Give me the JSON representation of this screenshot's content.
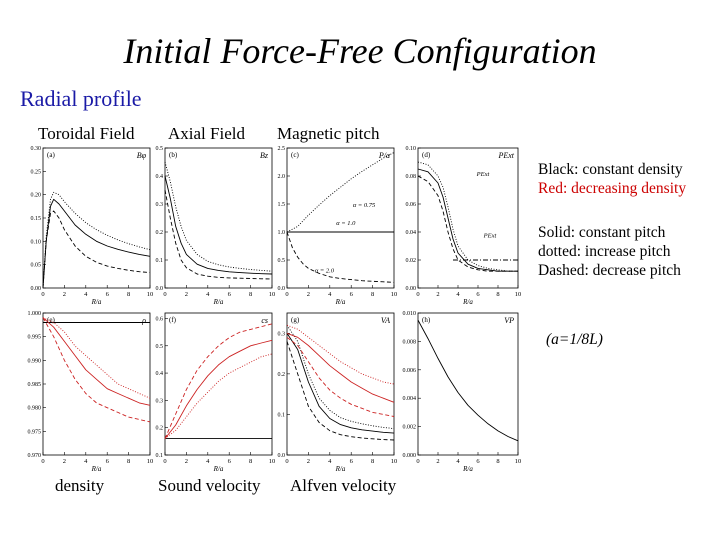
{
  "slide": {
    "title": "Initial Force-Free Configuration",
    "subtitle": "Radial profile",
    "top_labels": [
      "Toroidal Field",
      "Axial Field",
      "Magnetic pitch"
    ],
    "bottom_labels": [
      "density",
      "Sound velocity",
      "Alfven velocity"
    ],
    "legend_colors": [
      "Black: constant density",
      "Red: decreasing density"
    ],
    "legend_styles": [
      "Solid: constant pitch",
      "dotted: increase pitch",
      "Dashed: decrease pitch"
    ],
    "parameter_note": "(a=1/8L)",
    "colors": {
      "title": "#000000",
      "subtitle": "#1a1aa6",
      "red_text": "#cc0000",
      "red_curve": "#cc2222"
    }
  },
  "chart_data": [
    {
      "type": "line",
      "panel": "(a)",
      "title": "B_φ",
      "xlabel": "R/a",
      "xticks": [
        "0",
        "2",
        "4",
        "6",
        "8",
        "10"
      ],
      "yticks": [
        "0.00",
        "0.05",
        "0.10",
        "0.15",
        "0.20",
        "0.25",
        "0.30"
      ],
      "xlim": [
        0,
        10
      ],
      "ylim": [
        0,
        0.3
      ],
      "series": [
        {
          "style": "solid",
          "color": "black",
          "x": [
            0,
            0.3,
            0.7,
            1.0,
            1.5,
            2,
            3,
            4,
            5,
            6,
            7,
            8,
            9,
            10
          ],
          "y": [
            0,
            0.1,
            0.175,
            0.19,
            0.18,
            0.165,
            0.135,
            0.115,
            0.1,
            0.09,
            0.083,
            0.077,
            0.072,
            0.068
          ]
        },
        {
          "style": "dotted",
          "color": "black",
          "x": [
            0,
            0.3,
            0.7,
            1.0,
            1.5,
            2,
            3,
            4,
            5,
            6,
            7,
            8,
            9,
            10
          ],
          "y": [
            0,
            0.11,
            0.19,
            0.205,
            0.2,
            0.185,
            0.16,
            0.14,
            0.125,
            0.113,
            0.103,
            0.095,
            0.088,
            0.082
          ]
        },
        {
          "style": "dashed",
          "color": "black",
          "x": [
            0,
            0.3,
            0.7,
            1.0,
            1.5,
            2,
            3,
            4,
            5,
            6,
            7,
            8,
            9,
            10
          ],
          "y": [
            0,
            0.1,
            0.16,
            0.165,
            0.15,
            0.125,
            0.09,
            0.068,
            0.055,
            0.047,
            0.042,
            0.038,
            0.035,
            0.033
          ]
        }
      ]
    },
    {
      "type": "line",
      "panel": "(b)",
      "title": "B_z",
      "xlabel": "R/a",
      "xticks": [
        "0",
        "2",
        "4",
        "6",
        "8",
        "10"
      ],
      "yticks": [
        "0.0",
        "0.1",
        "0.2",
        "0.3",
        "0.4",
        "0.5"
      ],
      "xlim": [
        0,
        10
      ],
      "ylim": [
        0,
        0.5
      ],
      "series": [
        {
          "style": "solid",
          "color": "black",
          "x": [
            0,
            0.5,
            1,
            1.5,
            2,
            3,
            4,
            5,
            6,
            7,
            8,
            9,
            10
          ],
          "y": [
            0.4,
            0.32,
            0.22,
            0.16,
            0.12,
            0.085,
            0.07,
            0.063,
            0.058,
            0.055,
            0.053,
            0.051,
            0.05
          ]
        },
        {
          "style": "dotted",
          "color": "black",
          "x": [
            0,
            0.5,
            1,
            1.5,
            2,
            3,
            4,
            5,
            6,
            7,
            8,
            9,
            10
          ],
          "y": [
            0.45,
            0.38,
            0.29,
            0.22,
            0.17,
            0.12,
            0.095,
            0.083,
            0.075,
            0.07,
            0.066,
            0.063,
            0.06
          ]
        },
        {
          "style": "dashed",
          "color": "black",
          "x": [
            0,
            0.5,
            1,
            1.5,
            2,
            3,
            4,
            5,
            6,
            7,
            8,
            9,
            10
          ],
          "y": [
            0.35,
            0.25,
            0.16,
            0.1,
            0.072,
            0.05,
            0.042,
            0.038,
            0.036,
            0.035,
            0.034,
            0.033,
            0.032
          ]
        }
      ]
    },
    {
      "type": "line",
      "panel": "(c)",
      "title": "P/a",
      "xlabel": "R/a",
      "xticks": [
        "0",
        "2",
        "4",
        "6",
        "8",
        "10"
      ],
      "yticks": [
        "0.0",
        "0.5",
        "1.0",
        "1.5",
        "2.0",
        "2.5"
      ],
      "xlim": [
        0,
        10
      ],
      "ylim": [
        0,
        2.5
      ],
      "annotations": [
        "α = 0.75",
        "α = 1.0",
        "α = 2.0"
      ],
      "series": [
        {
          "style": "solid",
          "color": "black",
          "x": [
            0,
            10
          ],
          "y": [
            1.0,
            1.0
          ]
        },
        {
          "style": "dotted",
          "color": "black",
          "x": [
            0,
            1,
            2,
            3,
            4,
            5,
            6,
            7,
            8,
            9,
            10
          ],
          "y": [
            1.0,
            1.1,
            1.3,
            1.48,
            1.65,
            1.8,
            1.95,
            2.08,
            2.2,
            2.32,
            2.42
          ]
        },
        {
          "style": "dashed",
          "color": "black",
          "x": [
            0,
            0.5,
            1,
            1.5,
            2,
            3,
            4,
            5,
            6,
            7,
            8,
            9,
            10
          ],
          "y": [
            1.0,
            0.72,
            0.55,
            0.43,
            0.35,
            0.26,
            0.2,
            0.17,
            0.15,
            0.13,
            0.12,
            0.11,
            0.1
          ]
        }
      ]
    },
    {
      "type": "line",
      "panel": "(d)",
      "title": "P_Ext",
      "xlabel": "R/a",
      "xticks": [
        "0",
        "2",
        "4",
        "6",
        "8",
        "10"
      ],
      "yticks": [
        "0.00",
        "0.02",
        "0.04",
        "0.06",
        "0.08",
        "0.10"
      ],
      "xlim": [
        0,
        10
      ],
      "ylim": [
        0,
        0.1
      ],
      "annotations": [
        "P_Ext",
        "P_Ext"
      ],
      "series": [
        {
          "style": "solid",
          "color": "black",
          "x": [
            0,
            1,
            2,
            2.5,
            3,
            3.5,
            4,
            5,
            6,
            7,
            8,
            9,
            10
          ],
          "y": [
            0.085,
            0.083,
            0.075,
            0.065,
            0.05,
            0.035,
            0.025,
            0.017,
            0.014,
            0.013,
            0.012,
            0.012,
            0.012
          ]
        },
        {
          "style": "dotted",
          "color": "black",
          "x": [
            0,
            1,
            2,
            2.5,
            3,
            3.5,
            4,
            5,
            6,
            7,
            8,
            9,
            10
          ],
          "y": [
            0.09,
            0.088,
            0.08,
            0.072,
            0.058,
            0.042,
            0.03,
            0.02,
            0.016,
            0.014,
            0.013,
            0.012,
            0.012
          ]
        },
        {
          "style": "dashed",
          "color": "black",
          "x": [
            0,
            1,
            2,
            2.5,
            3,
            3.5,
            4,
            5,
            6,
            7,
            8,
            9,
            10
          ],
          "y": [
            0.08,
            0.076,
            0.066,
            0.055,
            0.04,
            0.028,
            0.02,
            0.015,
            0.013,
            0.012,
            0.012,
            0.012,
            0.012
          ]
        },
        {
          "style": "dashdot",
          "color": "black",
          "x": [
            3.5,
            10
          ],
          "y": [
            0.02,
            0.02
          ]
        }
      ]
    },
    {
      "type": "line",
      "panel": "(e)",
      "title": "ρ",
      "xlabel": "R/a",
      "xticks": [
        "0",
        "2",
        "4",
        "6",
        "8",
        "10"
      ],
      "yticks": [
        "0.970",
        "0.975",
        "0.980",
        "0.985",
        "0.990",
        "0.995",
        "1.000"
      ],
      "xlim": [
        0,
        10
      ],
      "ylim": [
        0.97,
        1.0
      ],
      "series": [
        {
          "style": "solid",
          "color": "black",
          "x": [
            0,
            10
          ],
          "y": [
            0.998,
            0.998
          ]
        },
        {
          "style": "solid",
          "color": "red",
          "x": [
            0,
            1,
            2,
            3,
            4,
            5,
            6,
            7,
            8,
            9,
            10
          ],
          "y": [
            0.999,
            0.997,
            0.994,
            0.991,
            0.988,
            0.986,
            0.984,
            0.983,
            0.982,
            0.981,
            0.9805
          ]
        },
        {
          "style": "dotted",
          "color": "red",
          "x": [
            0,
            1,
            2,
            3,
            4,
            5,
            6,
            7,
            8,
            9,
            10
          ],
          "y": [
            0.999,
            0.998,
            0.996,
            0.993,
            0.991,
            0.989,
            0.987,
            0.985,
            0.984,
            0.983,
            0.982
          ]
        },
        {
          "style": "dashed",
          "color": "red",
          "x": [
            0,
            1,
            2,
            3,
            4,
            5,
            6,
            7,
            8,
            9,
            10
          ],
          "y": [
            0.999,
            0.995,
            0.99,
            0.986,
            0.983,
            0.981,
            0.98,
            0.979,
            0.978,
            0.9775,
            0.977
          ]
        }
      ]
    },
    {
      "type": "line",
      "panel": "(f)",
      "title": "c_s",
      "xlabel": "R/a",
      "xticks": [
        "0",
        "2",
        "4",
        "6",
        "8",
        "10"
      ],
      "yticks": [
        "0.1",
        "0.2",
        "0.3",
        "0.4",
        "0.5",
        "0.6"
      ],
      "xlim": [
        0,
        10
      ],
      "ylim": [
        0.1,
        0.62
      ],
      "series": [
        {
          "style": "solid",
          "color": "black",
          "x": [
            0,
            10
          ],
          "y": [
            0.16,
            0.16
          ]
        },
        {
          "style": "solid",
          "color": "red",
          "x": [
            0,
            1,
            2,
            3,
            4,
            5,
            6,
            7,
            8,
            9,
            10
          ],
          "y": [
            0.16,
            0.21,
            0.28,
            0.34,
            0.39,
            0.43,
            0.46,
            0.48,
            0.5,
            0.51,
            0.52
          ]
        },
        {
          "style": "dashed",
          "color": "red",
          "x": [
            0,
            1,
            2,
            3,
            4,
            5,
            6,
            7,
            8,
            9,
            10
          ],
          "y": [
            0.16,
            0.25,
            0.34,
            0.41,
            0.46,
            0.5,
            0.53,
            0.55,
            0.56,
            0.57,
            0.58
          ]
        },
        {
          "style": "dotted",
          "color": "red",
          "x": [
            0,
            1,
            2,
            3,
            4,
            5,
            6,
            7,
            8,
            9,
            10
          ],
          "y": [
            0.16,
            0.19,
            0.24,
            0.29,
            0.33,
            0.37,
            0.4,
            0.42,
            0.44,
            0.46,
            0.47
          ]
        }
      ]
    },
    {
      "type": "line",
      "panel": "(g)",
      "title": "V_A",
      "xlabel": "R/a",
      "xticks": [
        "0",
        "2",
        "4",
        "6",
        "8",
        "10"
      ],
      "yticks": [
        "0.0",
        "0.1",
        "0.2",
        "0.3"
      ],
      "xlim": [
        0,
        10
      ],
      "ylim": [
        0,
        0.35
      ],
      "series": [
        {
          "style": "solid",
          "color": "black",
          "x": [
            0,
            1,
            2,
            3,
            4,
            5,
            6,
            7,
            8,
            9,
            10
          ],
          "y": [
            0.3,
            0.26,
            0.18,
            0.12,
            0.09,
            0.075,
            0.067,
            0.062,
            0.059,
            0.056,
            0.054
          ]
        },
        {
          "style": "dotted",
          "color": "black",
          "x": [
            0,
            1,
            2,
            3,
            4,
            5,
            6,
            7,
            8,
            9,
            10
          ],
          "y": [
            0.32,
            0.28,
            0.2,
            0.14,
            0.11,
            0.092,
            0.083,
            0.077,
            0.072,
            0.068,
            0.065
          ]
        },
        {
          "style": "dashed",
          "color": "black",
          "x": [
            0,
            1,
            2,
            3,
            4,
            5,
            6,
            7,
            8,
            9,
            10
          ],
          "y": [
            0.28,
            0.2,
            0.12,
            0.08,
            0.06,
            0.05,
            0.045,
            0.042,
            0.04,
            0.038,
            0.037
          ]
        },
        {
          "style": "solid",
          "color": "red",
          "x": [
            0,
            1,
            2,
            3,
            4,
            5,
            6,
            7,
            8,
            9,
            10
          ],
          "y": [
            0.3,
            0.29,
            0.27,
            0.245,
            0.22,
            0.2,
            0.18,
            0.165,
            0.15,
            0.14,
            0.13
          ]
        },
        {
          "style": "dotted",
          "color": "red",
          "x": [
            0,
            1,
            2,
            3,
            4,
            5,
            6,
            7,
            8,
            9,
            10
          ],
          "y": [
            0.32,
            0.31,
            0.29,
            0.27,
            0.25,
            0.23,
            0.215,
            0.2,
            0.19,
            0.18,
            0.175
          ]
        },
        {
          "style": "dashed",
          "color": "red",
          "x": [
            0,
            1,
            2,
            3,
            4,
            5,
            6,
            7,
            8,
            9,
            10
          ],
          "y": [
            0.29,
            0.27,
            0.23,
            0.19,
            0.16,
            0.14,
            0.125,
            0.115,
            0.105,
            0.1,
            0.095
          ]
        }
      ]
    },
    {
      "type": "line",
      "panel": "(h)",
      "title": "V_P",
      "xlabel": "R/a",
      "xticks": [
        "0",
        "2",
        "4",
        "6",
        "8",
        "10"
      ],
      "yticks": [
        "0.000",
        "0.002",
        "0.004",
        "0.006",
        "0.008",
        "0.010"
      ],
      "xlim": [
        0,
        10
      ],
      "ylim": [
        0,
        0.01
      ],
      "series": [
        {
          "style": "solid",
          "color": "black",
          "x": [
            0,
            1,
            2,
            3,
            4,
            5,
            6,
            7,
            8,
            9,
            10
          ],
          "y": [
            0.0095,
            0.0082,
            0.0068,
            0.0055,
            0.0044,
            0.0035,
            0.0028,
            0.0022,
            0.0017,
            0.0013,
            0.001
          ]
        }
      ]
    }
  ]
}
